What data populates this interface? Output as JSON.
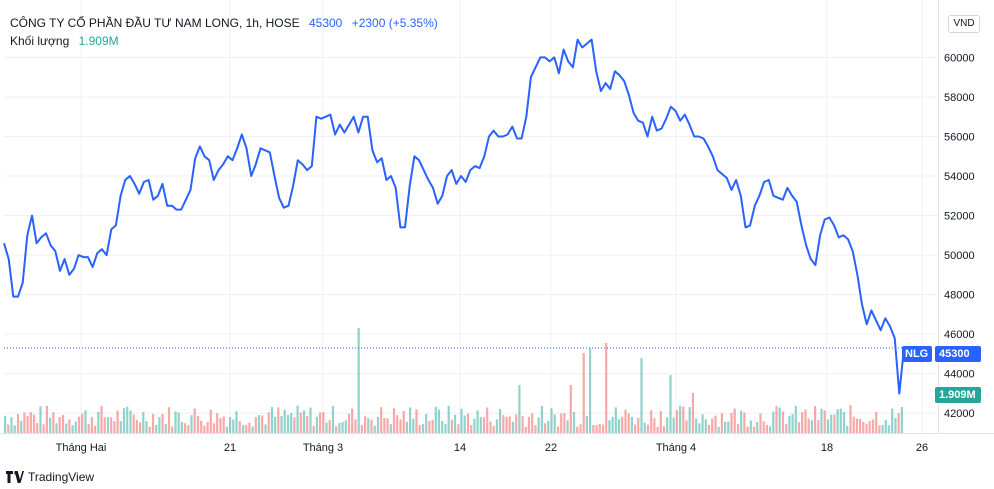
{
  "legend": {
    "title": "CÔNG TY CỔ PHẦN ĐẦU TƯ NAM LONG, 1h, HOSE",
    "price": "45300",
    "change": "+2300 (+5.35%)",
    "volume_label": "Khối lượng",
    "volume_value": "1.909M"
  },
  "currency_button": "VND",
  "price_tag": {
    "symbol": "NLG",
    "value": "45300"
  },
  "volume_tag": "1.909M",
  "brand": "TradingView",
  "colors": {
    "line": "#2962ff",
    "volume_up": "#26a69a",
    "volume_down": "#ef5350",
    "grid": "#eef0f3"
  },
  "chart_data": {
    "type": "line",
    "title": "CÔNG TY CỔ PHẦN ĐẦU TƯ NAM LONG, 1h, HOSE",
    "ylim": [
      41000,
      62500
    ],
    "y_ticks": [
      42000,
      44000,
      46000,
      48000,
      50000,
      52000,
      54000,
      56000,
      58000,
      60000
    ],
    "x_ticks": [
      "Tháng Hai",
      "21",
      "Tháng 3",
      "14",
      "22",
      "Tháng 4",
      "18",
      "26"
    ],
    "series": [
      {
        "values": [
          50600,
          49800,
          47900,
          47900,
          48600,
          51000,
          52000,
          50600,
          50900,
          51100,
          50500,
          50200,
          49200,
          49800,
          49000,
          49300,
          50000,
          49900,
          49900,
          49400,
          50100,
          50300,
          50000,
          51300,
          51500,
          53000,
          53800,
          54000,
          53600,
          53100,
          53700,
          53800,
          52800,
          53000,
          53600,
          52500,
          52500,
          52300,
          52300,
          52800,
          53300,
          54900,
          55500,
          55000,
          54800,
          53800,
          54300,
          54600,
          55000,
          54800,
          55400,
          56100,
          55400,
          54000,
          54600,
          55400,
          55300,
          55200,
          54000,
          52900,
          52400,
          52500,
          53500,
          54800,
          54600,
          54300,
          54500,
          57000,
          56900,
          57000,
          57100,
          56100,
          56600,
          56200,
          56600,
          57000,
          56200,
          57000,
          57000,
          55300,
          54700,
          54900,
          53800,
          54000,
          53400,
          51400,
          51400,
          53500,
          55000,
          54800,
          54300,
          53800,
          53400,
          52600,
          53000,
          54000,
          54300,
          53600,
          54000,
          53700,
          54300,
          54500,
          54400,
          55000,
          56000,
          56300,
          56000,
          56000,
          56100,
          56500,
          55900,
          55900,
          57000,
          59000,
          59500,
          60000,
          60000,
          59800,
          60000,
          59200,
          60400,
          59800,
          59500,
          60900,
          60500,
          60700,
          60900,
          59300,
          58300,
          58700,
          58400,
          59300,
          59100,
          58800,
          58100,
          57200,
          56800,
          56700,
          56000,
          57000,
          56300,
          56400,
          56900,
          57500,
          57300,
          56800,
          57100,
          56600,
          56000,
          56000,
          55900,
          55500,
          55000,
          54300,
          54100,
          53900,
          53300,
          53800,
          53000,
          51400,
          51500,
          52500,
          53000,
          53700,
          53800,
          53000,
          52900,
          52800,
          53400,
          53000,
          52700,
          51500,
          50500,
          49800,
          49500,
          51000,
          51800,
          51900,
          51500,
          50900,
          51000,
          50800,
          50200,
          49000,
          47500,
          46500,
          47200,
          46700,
          46200,
          46800,
          46400,
          45800,
          43000,
          45300
        ]
      }
    ],
    "volume": {
      "name": "Khối lượng",
      "last": "1.909M"
    }
  }
}
